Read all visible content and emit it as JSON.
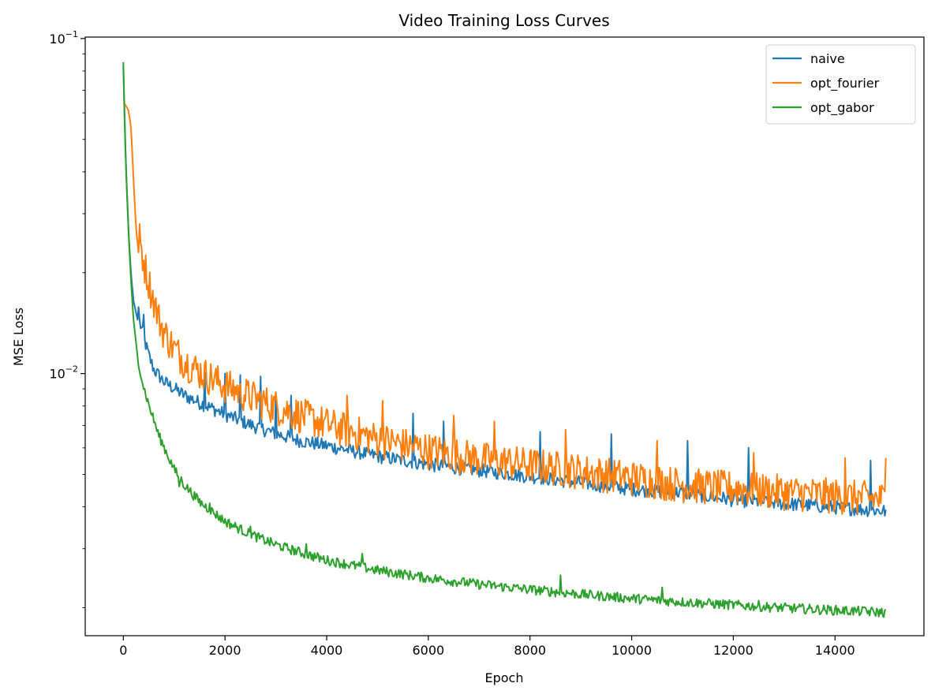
{
  "chart_data": {
    "type": "line",
    "title": "Video Training Loss Curves",
    "xlabel": "Epoch",
    "ylabel": "MSE Loss",
    "xlim": [
      -750,
      15750
    ],
    "ylim": [
      0.00165,
      0.101
    ],
    "yscale": "log",
    "grid": false,
    "legend_position": "top-right",
    "x_ticks": [
      0,
      2000,
      4000,
      6000,
      8000,
      10000,
      12000,
      14000
    ],
    "x_tick_labels": [
      "0",
      "2000",
      "4000",
      "6000",
      "8000",
      "10000",
      "12000",
      "14000"
    ],
    "y_ticks": [
      0.01,
      0.1
    ],
    "y_tick_labels": [
      {
        "base": "10",
        "exp": "−2"
      },
      {
        "base": "10",
        "exp": "−1"
      }
    ],
    "series": [
      {
        "name": "naive",
        "color": "#1f77b4",
        "x": [
          0,
          50,
          100,
          150,
          200,
          300,
          400,
          500,
          600,
          800,
          1000,
          1200,
          1500,
          2000,
          2500,
          3000,
          3500,
          4000,
          4500,
          5000,
          6000,
          7000,
          8000,
          9000,
          10000,
          11000,
          12000,
          13000,
          14000,
          15000
        ],
        "values": [
          0.082,
          0.042,
          0.027,
          0.02,
          0.0165,
          0.014,
          0.0122,
          0.0108,
          0.0098,
          0.009,
          0.0086,
          0.0082,
          0.0078,
          0.0072,
          0.0067,
          0.0063,
          0.006,
          0.0058,
          0.0056,
          0.0054,
          0.0051,
          0.0049,
          0.0047,
          0.0045,
          0.0043,
          0.0042,
          0.004,
          0.0039,
          0.0038,
          0.0037
        ],
        "spikes": [
          [
            300,
            0.0158
          ],
          [
            400,
            0.015
          ],
          [
            550,
            0.013
          ],
          [
            750,
            0.0115
          ],
          [
            950,
            0.0112
          ],
          [
            1150,
            0.011
          ],
          [
            1350,
            0.0105
          ],
          [
            1600,
            0.0101
          ],
          [
            2000,
            0.01
          ],
          [
            2300,
            0.0099
          ],
          [
            2700,
            0.0098
          ],
          [
            3000,
            0.0088
          ],
          [
            3300,
            0.0086
          ],
          [
            3650,
            0.0084
          ],
          [
            3950,
            0.0093
          ],
          [
            5700,
            0.0076
          ],
          [
            6300,
            0.0072
          ],
          [
            8200,
            0.0067
          ],
          [
            9600,
            0.0066
          ],
          [
            11100,
            0.0063
          ],
          [
            12300,
            0.006
          ],
          [
            14700,
            0.0055
          ]
        ]
      },
      {
        "name": "opt_fourier",
        "color": "#ff7f0e",
        "x": [
          0,
          20,
          50,
          100,
          150,
          200,
          250,
          300,
          400,
          500,
          600,
          700,
          800,
          1000,
          1200,
          1500,
          2000,
          2500,
          3000,
          3500,
          4000,
          4500,
          5000,
          6000,
          7000,
          8000,
          9000,
          10000,
          11000,
          12000,
          13000,
          14000,
          15000
        ],
        "values": [
          0.064,
          0.064,
          0.063,
          0.061,
          0.055,
          0.038,
          0.027,
          0.023,
          0.019,
          0.0165,
          0.0145,
          0.0128,
          0.0117,
          0.0104,
          0.0096,
          0.0089,
          0.0081,
          0.0075,
          0.007,
          0.0066,
          0.0062,
          0.0059,
          0.0056,
          0.0052,
          0.0049,
          0.0047,
          0.0045,
          0.0043,
          0.0041,
          0.004,
          0.0039,
          0.0038,
          0.0037
        ],
        "spikes": [
          [
            650,
            0.0185
          ],
          [
            2300,
            0.0093
          ],
          [
            4400,
            0.0086
          ],
          [
            5100,
            0.0083
          ],
          [
            6500,
            0.0075
          ],
          [
            7300,
            0.0072
          ],
          [
            8700,
            0.0068
          ],
          [
            10500,
            0.0063
          ],
          [
            12400,
            0.0058
          ],
          [
            14200,
            0.0056
          ],
          [
            15000,
            0.0056
          ]
        ]
      },
      {
        "name": "opt_gabor",
        "color": "#2ca02c",
        "x": [
          0,
          30,
          60,
          100,
          150,
          200,
          300,
          400,
          500,
          700,
          1000,
          1200,
          1500,
          2000,
          2500,
          3000,
          3500,
          4000,
          5000,
          6000,
          7000,
          8000,
          9000,
          10000,
          11000,
          12000,
          13000,
          14000,
          15000
        ],
        "values": [
          0.085,
          0.052,
          0.038,
          0.027,
          0.019,
          0.0145,
          0.0105,
          0.0088,
          0.0078,
          0.0063,
          0.005,
          0.0045,
          0.004,
          0.0035,
          0.0032,
          0.00298,
          0.00282,
          0.00268,
          0.0025,
          0.00237,
          0.00227,
          0.00219,
          0.00212,
          0.00206,
          0.00201,
          0.00197,
          0.00193,
          0.0019,
          0.00187
        ],
        "spikes": [
          [
            1100,
            0.0046
          ],
          [
            1700,
            0.0041
          ],
          [
            2500,
            0.0035
          ],
          [
            3600,
            0.0031
          ],
          [
            4700,
            0.0029
          ],
          [
            5550,
            0.003
          ],
          [
            7150,
            0.0028
          ],
          [
            8600,
            0.0025
          ],
          [
            10600,
            0.0023
          ],
          [
            12500,
            0.0021
          ],
          [
            14600,
            0.002
          ]
        ]
      }
    ]
  }
}
